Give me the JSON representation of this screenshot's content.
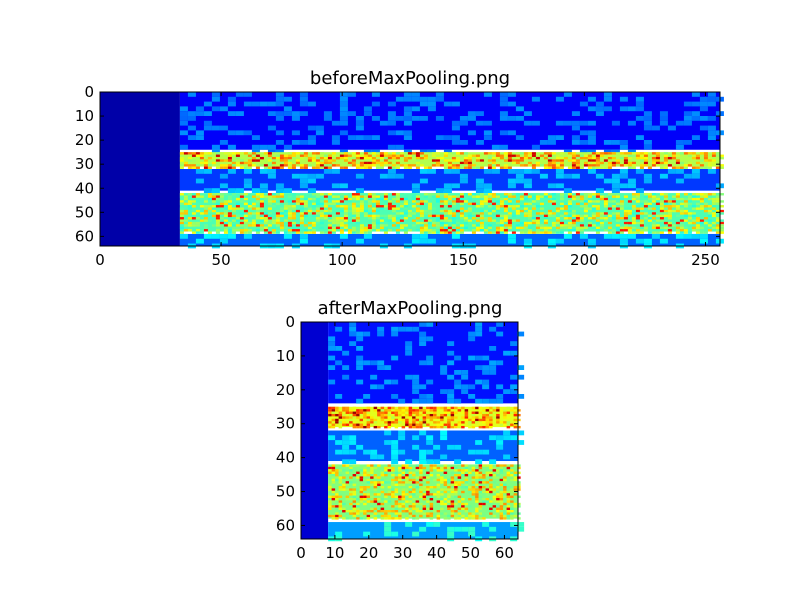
{
  "figure": {
    "background": "#ffffff"
  },
  "chart_data": [
    {
      "type": "heatmap",
      "title": "beforeMaxPooling.png",
      "colormap": "jet",
      "xlim": [
        0,
        256
      ],
      "ylim": [
        64,
        0
      ],
      "xticks": [
        0,
        50,
        100,
        150,
        200,
        250
      ],
      "yticks": [
        0,
        10,
        20,
        30,
        40,
        50,
        60
      ],
      "xlabel": "",
      "ylabel": "",
      "grid": false,
      "bands": [
        {
          "x_start": 0,
          "x_end": 33,
          "rows": [
            0,
            64
          ],
          "value": 0.04
        },
        {
          "x_start": 33,
          "x_end": 256,
          "rows": [
            0,
            24
          ],
          "value": 0.12
        },
        {
          "x_start": 33,
          "x_end": 256,
          "rows": [
            25,
            31
          ],
          "value": 0.55,
          "peak": 0.92
        },
        {
          "x_start": 33,
          "x_end": 256,
          "rows": [
            32,
            41
          ],
          "value": 0.18
        },
        {
          "x_start": 33,
          "x_end": 256,
          "rows": [
            42,
            58
          ],
          "value": 0.45,
          "peak": 0.85
        },
        {
          "x_start": 33,
          "x_end": 256,
          "rows": [
            59,
            64
          ],
          "value": 0.22
        }
      ]
    },
    {
      "type": "heatmap",
      "title": "afterMaxPooling.png",
      "colormap": "jet",
      "xlim": [
        0,
        64
      ],
      "ylim": [
        64,
        0
      ],
      "xticks": [
        0,
        10,
        20,
        30,
        40,
        50,
        60
      ],
      "yticks": [
        0,
        10,
        20,
        30,
        40,
        50,
        60
      ],
      "xlabel": "",
      "ylabel": "",
      "grid": false,
      "bands": [
        {
          "x_start": 0,
          "x_end": 8,
          "rows": [
            0,
            64
          ],
          "value": 0.08
        },
        {
          "x_start": 8,
          "x_end": 64,
          "rows": [
            0,
            24
          ],
          "value": 0.14
        },
        {
          "x_start": 8,
          "x_end": 64,
          "rows": [
            25,
            31
          ],
          "value": 0.6,
          "peak": 0.97
        },
        {
          "x_start": 8,
          "x_end": 64,
          "rows": [
            32,
            41
          ],
          "value": 0.22
        },
        {
          "x_start": 8,
          "x_end": 64,
          "rows": [
            42,
            58
          ],
          "value": 0.5,
          "peak": 0.9
        },
        {
          "x_start": 8,
          "x_end": 64,
          "rows": [
            59,
            64
          ],
          "value": 0.28
        }
      ]
    }
  ]
}
